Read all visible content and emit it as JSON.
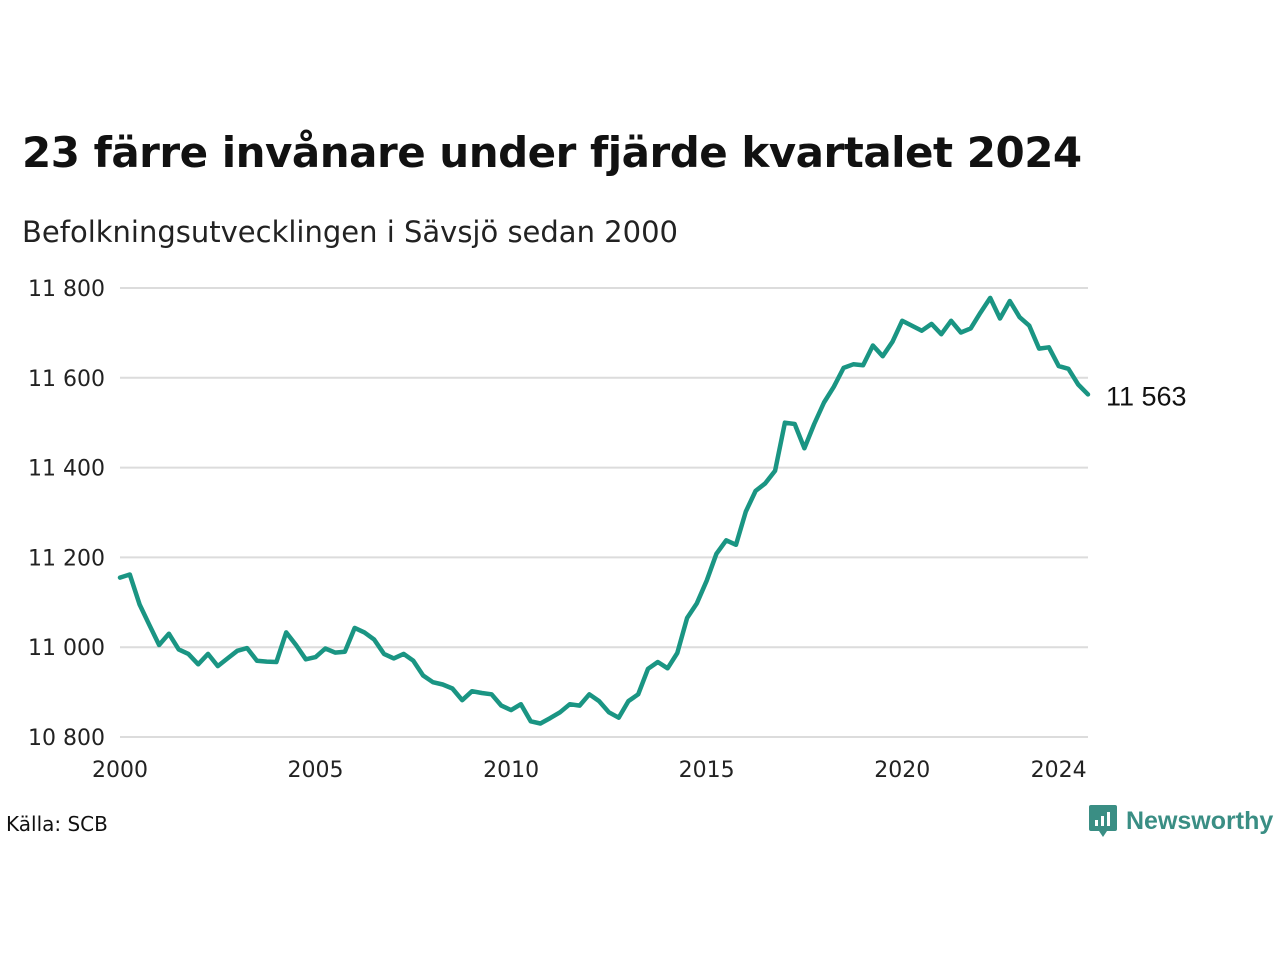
{
  "header": {
    "title": "23 färre invånare under fjärde kvartalet 2024",
    "subtitle": "Befolkningsutvecklingen i Sävsjö sedan 2000"
  },
  "footer": {
    "source": "Källa: SCB",
    "brand": "Newsworthy",
    "brand_icon": "newsworthy-logo-icon"
  },
  "colors": {
    "line": "#1a9583",
    "grid": "#dcdcdc",
    "brand": "#3a8e84"
  },
  "chart_data": {
    "type": "line",
    "title": "23 färre invånare under fjärde kvartalet 2024",
    "subtitle": "Befolkningsutvecklingen i Sävsjö sedan 2000",
    "xlabel": "",
    "ylabel": "",
    "xlim": [
      2000,
      2024.75
    ],
    "ylim": [
      10800,
      11800
    ],
    "yticks": [
      10800,
      11000,
      11200,
      11400,
      11600,
      11800
    ],
    "ytick_labels": [
      "10 800",
      "11 000",
      "11 200",
      "11 400",
      "11 600",
      "11 800"
    ],
    "xticks": [
      2000,
      2005,
      2010,
      2015,
      2020,
      2024
    ],
    "xtick_labels": [
      "2000",
      "2005",
      "2010",
      "2015",
      "2020",
      "2024"
    ],
    "grid": "horizontal",
    "end_label": "11 563",
    "series": [
      {
        "x": [
          2000.0,
          2000.25,
          2000.5,
          2000.75,
          2001.0,
          2001.25,
          2001.5,
          2001.75,
          2002.0,
          2002.25,
          2002.5,
          2002.75,
          2003.0,
          2003.25,
          2003.5,
          2003.75,
          2004.0,
          2004.25,
          2004.5,
          2004.75,
          2005.0,
          2005.25,
          2005.5,
          2005.75,
          2006.0,
          2006.25,
          2006.5,
          2006.75,
          2007.0,
          2007.25,
          2007.5,
          2007.75,
          2008.0,
          2008.25,
          2008.5,
          2008.75,
          2009.0,
          2009.25,
          2009.5,
          2009.75,
          2010.0,
          2010.25,
          2010.5,
          2010.75,
          2011.0,
          2011.25,
          2011.5,
          2011.75,
          2012.0,
          2012.25,
          2012.5,
          2012.75,
          2013.0,
          2013.25,
          2013.5,
          2013.75,
          2014.0,
          2014.25,
          2014.5,
          2014.75,
          2015.0,
          2015.25,
          2015.5,
          2015.75,
          2016.0,
          2016.25,
          2016.5,
          2016.75,
          2017.0,
          2017.25,
          2017.5,
          2017.75,
          2018.0,
          2018.25,
          2018.5,
          2018.75,
          2019.0,
          2019.25,
          2019.5,
          2019.75,
          2020.0,
          2020.25,
          2020.5,
          2020.75,
          2021.0,
          2021.25,
          2021.5,
          2021.75,
          2022.0,
          2022.25,
          2022.5,
          2022.75,
          2023.0,
          2023.25,
          2023.5,
          2023.75,
          2024.0,
          2024.25,
          2024.5,
          2024.75
        ],
        "y": [
          11155,
          11162,
          11095,
          11050,
          11005,
          11030,
          10995,
          10985,
          10962,
          10985,
          10958,
          10975,
          10992,
          10998,
          10970,
          10968,
          10967,
          11033,
          11005,
          10973,
          10978,
          10997,
          10988,
          10990,
          11043,
          11033,
          11017,
          10985,
          10975,
          10985,
          10970,
          10937,
          10922,
          10917,
          10908,
          10882,
          10902,
          10898,
          10895,
          10870,
          10860,
          10873,
          10835,
          10830,
          10842,
          10855,
          10873,
          10870,
          10895,
          10880,
          10855,
          10843,
          10880,
          10895,
          10952,
          10967,
          10953,
          10987,
          11065,
          11098,
          11148,
          11208,
          11238,
          11228,
          11302,
          11348,
          11365,
          11393,
          11500,
          11497,
          11443,
          11497,
          11545,
          11580,
          11622,
          11630,
          11628,
          11672,
          11648,
          11680,
          11727,
          11716,
          11705,
          11720,
          11697,
          11727,
          11701,
          11710,
          11745,
          11778,
          11732,
          11771,
          11735,
          11716,
          11665,
          11668,
          11626,
          11620,
          11585,
          11563
        ]
      }
    ]
  }
}
